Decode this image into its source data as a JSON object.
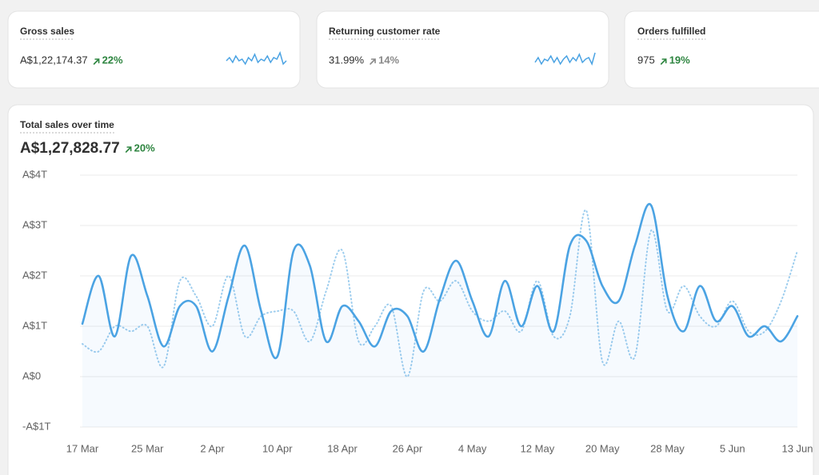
{
  "cards": [
    {
      "title": "Gross sales",
      "value": "A$1,22,174.37",
      "change": "22%",
      "change_color": "#2e8540",
      "sparkline": [
        0.5,
        0.7,
        0.4,
        0.8,
        0.5,
        0.6,
        0.3,
        0.7,
        0.5,
        0.9,
        0.4,
        0.6,
        0.5,
        0.8,
        0.4,
        0.7,
        0.6,
        1.0,
        0.3,
        0.5
      ]
    },
    {
      "title": "Returning customer rate",
      "value": "31.99%",
      "change": "14%",
      "change_color": "#8a8a8a",
      "sparkline": [
        0.4,
        0.7,
        0.3,
        0.6,
        0.5,
        0.8,
        0.4,
        0.7,
        0.3,
        0.6,
        0.8,
        0.4,
        0.7,
        0.5,
        0.9,
        0.4,
        0.6,
        0.7,
        0.3,
        1.0
      ]
    },
    {
      "title": "Orders fulfilled",
      "value": "975",
      "change": "19%",
      "change_color": "#2e8540"
    }
  ],
  "chart_data": {
    "type": "line",
    "title": "Total sales over time",
    "value": "A$1,27,828.77",
    "change": "20%",
    "change_color": "#2e8540",
    "categories": [
      "17 Mar",
      null,
      null,
      null,
      "25 Mar",
      null,
      null,
      null,
      "2 Apr",
      null,
      null,
      null,
      "10 Apr",
      null,
      null,
      null,
      "18 Apr",
      null,
      null,
      null,
      "26 Apr",
      null,
      null,
      null,
      "4 May",
      null,
      null,
      null,
      "12 May",
      null,
      null,
      null,
      "20 May",
      null,
      null,
      null,
      "28 May",
      null,
      null,
      null,
      "5 Jun",
      null,
      null,
      null,
      "13 Jun"
    ],
    "series": [
      {
        "color": "#4ba3e3",
        "style": "solid",
        "values": [
          1.05,
          2.0,
          0.8,
          2.4,
          1.6,
          0.6,
          1.4,
          1.4,
          0.5,
          1.6,
          2.6,
          1.3,
          0.4,
          2.5,
          2.2,
          0.7,
          1.4,
          1.1,
          0.6,
          1.3,
          1.2,
          0.5,
          1.55,
          2.3,
          1.5,
          0.8,
          1.9,
          1.0,
          1.8,
          0.9,
          2.6,
          2.7,
          1.8,
          1.5,
          2.6,
          3.4,
          1.6,
          0.9,
          1.8,
          1.1,
          1.4,
          0.8,
          1.0,
          0.7,
          1.2
        ]
      },
      {
        "color": "#9dcdee",
        "style": "dotted",
        "values": [
          0.65,
          0.5,
          1.0,
          0.9,
          1.0,
          0.2,
          1.9,
          1.6,
          1.0,
          2.0,
          0.8,
          1.2,
          1.3,
          1.3,
          0.7,
          1.7,
          2.5,
          0.7,
          1.0,
          1.4,
          0.0,
          1.7,
          1.5,
          1.9,
          1.3,
          1.1,
          1.3,
          0.9,
          1.9,
          0.8,
          1.2,
          3.3,
          0.3,
          1.1,
          0.4,
          2.9,
          1.3,
          1.8,
          1.2,
          1.0,
          1.5,
          0.9,
          0.9,
          1.5,
          2.5
        ]
      }
    ],
    "ylim": [
      -1,
      4
    ],
    "yticks": [
      {
        "value": 4,
        "label": "A$4T"
      },
      {
        "value": 3,
        "label": "A$3T"
      },
      {
        "value": 2,
        "label": "A$2T"
      },
      {
        "value": 1,
        "label": "A$1T"
      },
      {
        "value": 0,
        "label": "A$0"
      },
      {
        "value": -1,
        "label": "-A$1T"
      }
    ],
    "grid": true
  }
}
